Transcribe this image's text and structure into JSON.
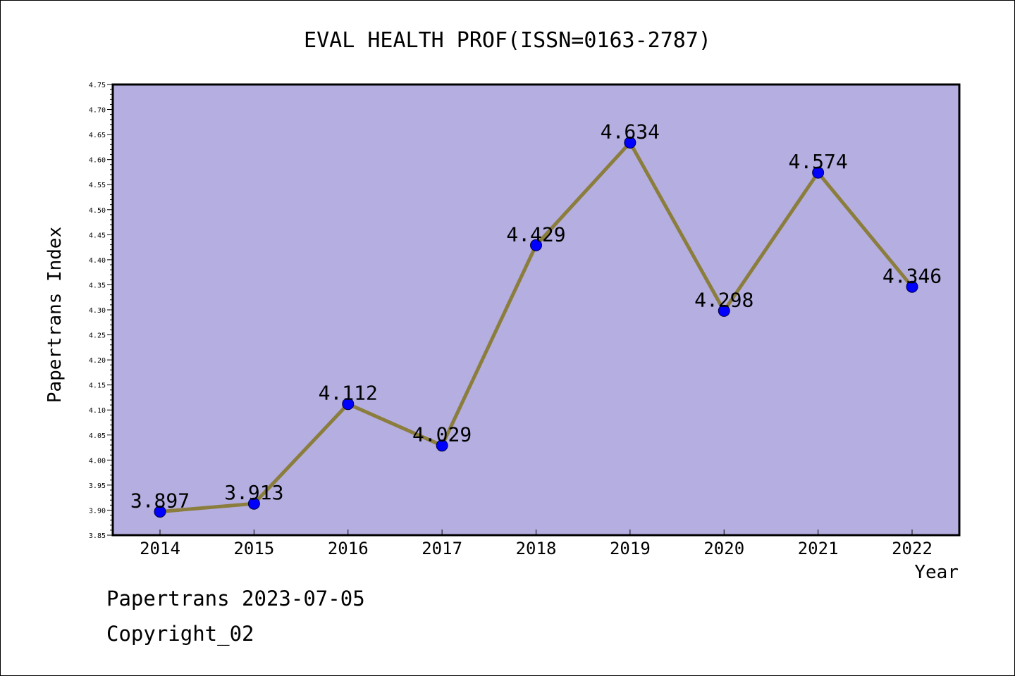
{
  "chart_data": {
    "type": "line",
    "title": "EVAL HEALTH PROF(ISSN=0163-2787)",
    "xlabel": "Year",
    "ylabel": "Papertrans Index",
    "categories": [
      "2014",
      "2015",
      "2016",
      "2017",
      "2018",
      "2019",
      "2020",
      "2021",
      "2022"
    ],
    "series": [
      {
        "values": [
          3.897,
          3.913,
          4.112,
          4.029,
          4.429,
          4.634,
          4.298,
          4.574,
          4.346
        ],
        "data_labels": [
          "3.897",
          "3.913",
          "4.112",
          "4.029",
          "4.429",
          "4.634",
          "4.298",
          "4.574",
          "4.346"
        ]
      }
    ],
    "ylim": [
      3.85,
      4.75
    ],
    "y_ticks": [
      "3.85",
      "3.90",
      "3.95",
      "4.00",
      "4.05",
      "4.10",
      "4.15",
      "4.20",
      "4.25",
      "4.30",
      "4.35",
      "4.40",
      "4.45",
      "4.50",
      "4.55",
      "4.60",
      "4.65",
      "4.70",
      "4.75"
    ],
    "grid": false,
    "colors": {
      "plot_background": "#b4aee1",
      "line": "#8b7d3c",
      "marker": "#0000ff"
    }
  },
  "footer": {
    "date_line": "Papertrans 2023-07-05",
    "copyright": "Copyright_02"
  }
}
